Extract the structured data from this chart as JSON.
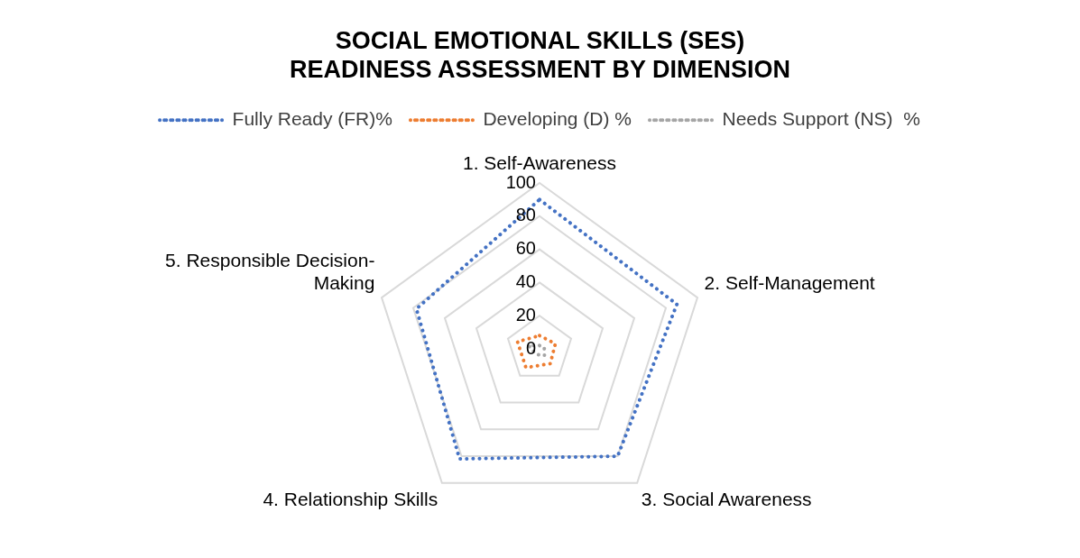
{
  "chart_data": {
    "type": "radar",
    "title": "SOCIAL EMOTIONAL SKILLS (SES) READINESS ASSESSMENT BY DIMENSION",
    "categories": [
      "1. Self-Awareness",
      "2. Self-Management",
      "3. Social Awareness",
      "4. Relationship Skills",
      "5. Responsible Decision-Making"
    ],
    "series": [
      {
        "name": "Fully Ready (FR)%",
        "color": "#4472c4",
        "values": [
          90,
          87,
          80,
          82,
          78
        ]
      },
      {
        "name": "Developing (D) %",
        "color": "#ed7d31",
        "values": [
          8,
          10,
          11,
          14,
          14
        ]
      },
      {
        "name": "Needs Support (NS)  %",
        "color": "#a5a5a5",
        "values": [
          2,
          3,
          5,
          4,
          7
        ]
      }
    ],
    "ylim": [
      0,
      100
    ],
    "yticks": [
      0,
      20,
      40,
      60,
      80,
      100
    ],
    "grid": true,
    "legend": "top",
    "marker": "none",
    "line_style": "dotted"
  }
}
